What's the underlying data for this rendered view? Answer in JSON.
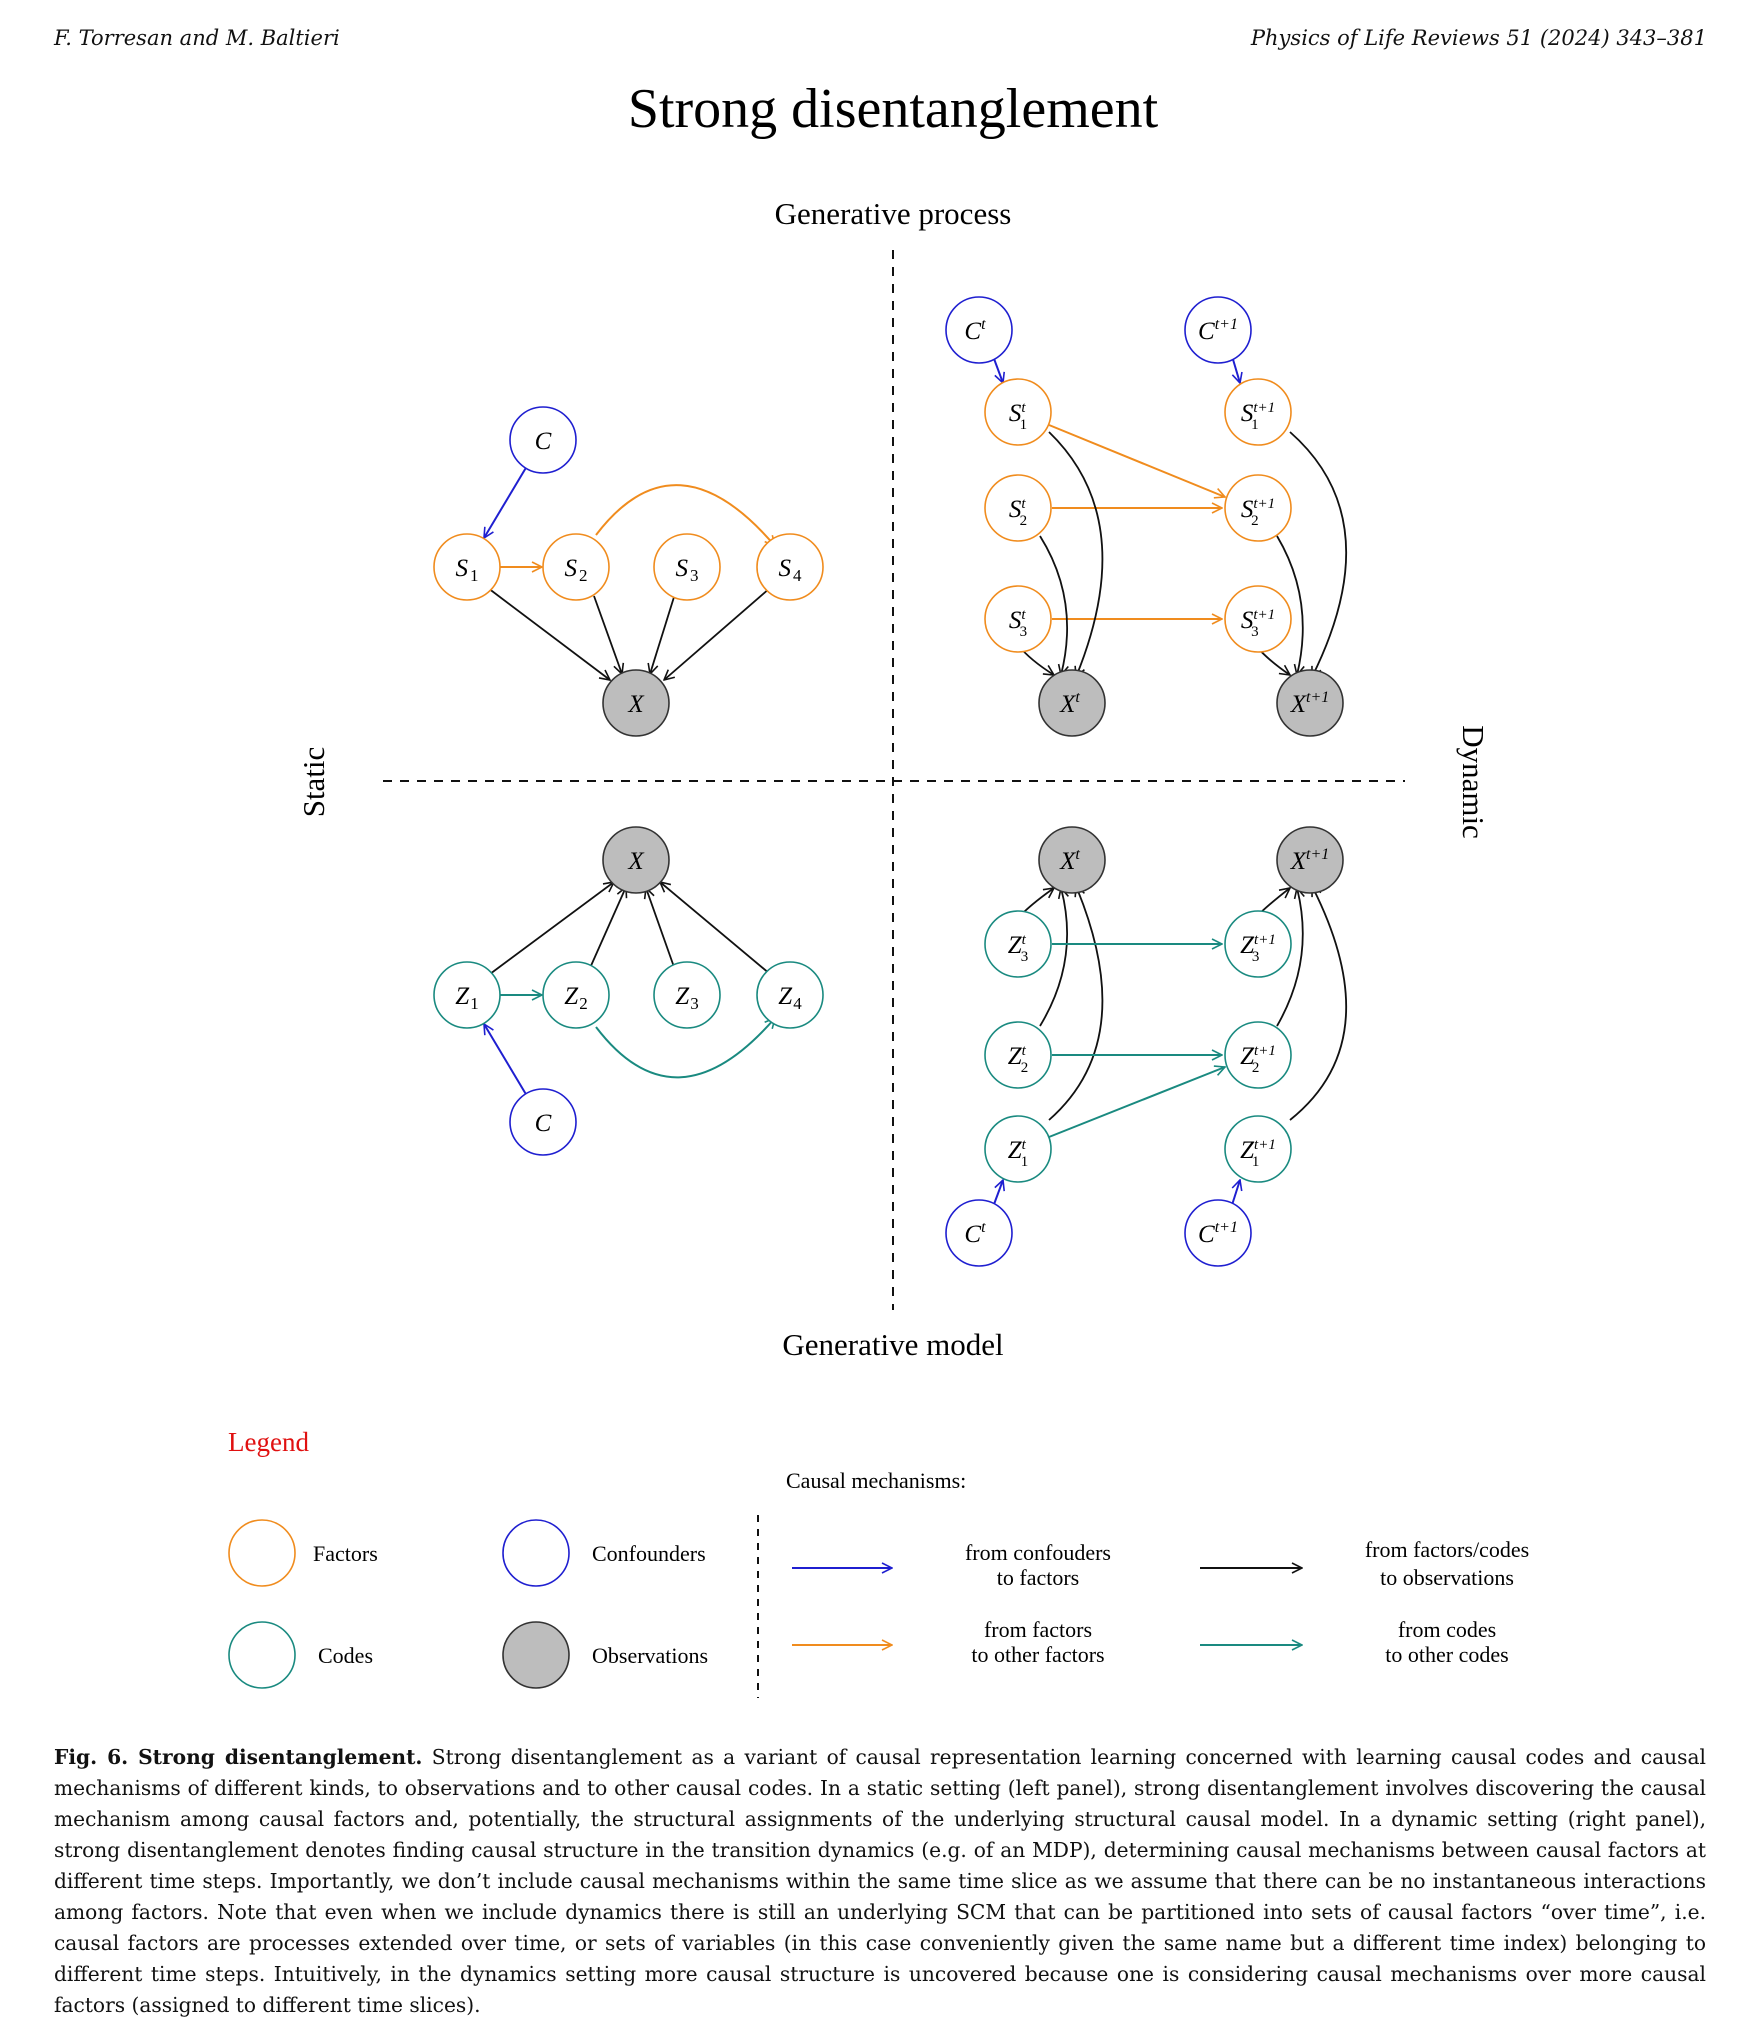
{
  "header": {
    "authors": "F. Torresan and M. Baltieri",
    "journal": "Physics of Life Reviews 51 (2024) 343–381"
  },
  "figure": {
    "title": "Strong disentanglement",
    "top_label": "Generative process",
    "bottom_label": "Generative model",
    "left_label": "Static",
    "right_label": "Dynamic",
    "colors": {
      "factor": "#f08c1e",
      "code": "#1a8a80",
      "confounder": "#1f1fd0",
      "observation_fill": "#bdbdbd",
      "causal_black": "#111111",
      "legend_title": "#e01010"
    },
    "nodes": {
      "static_process": [
        "C",
        "S1",
        "S2",
        "S3",
        "S4",
        "X"
      ],
      "static_model": [
        "X",
        "Z1",
        "Z2",
        "Z3",
        "Z4",
        "C"
      ],
      "dynamic_process": [
        "Ct",
        "Ct+1",
        "S1t",
        "S2t",
        "S3t",
        "S1t+1",
        "S2t+1",
        "S3t+1",
        "Xt",
        "Xt+1"
      ],
      "dynamic_model": [
        "Xt",
        "Xt+1",
        "Z3t",
        "Z2t",
        "Z1t",
        "Z3t+1",
        "Z2t+1",
        "Z1t+1",
        "Ct",
        "Ct+1"
      ]
    },
    "legend": {
      "title": "Legend",
      "factors": "Factors",
      "codes": "Codes",
      "confounders": "Confounders",
      "observations": "Observations",
      "mechanisms_title": "Causal mechanisms:",
      "conf_to_factors": [
        "from confouders",
        "to factors"
      ],
      "factors_to_obs": [
        "from factors/codes",
        "to observations"
      ],
      "factors_to_factors": [
        "from factors",
        "to other factors"
      ],
      "codes_to_codes": [
        "from codes",
        "to other codes"
      ]
    }
  },
  "caption": {
    "label": "Fig. 6. Strong disentanglement.",
    "text": "Strong disentanglement as a variant of causal representation learning concerned with learning causal codes and causal mechanisms of different kinds, to observations and to other causal codes. In a static setting (left panel), strong disentanglement involves discovering the causal mechanism among causal factors and, potentially, the structural assignments of the underlying structural causal model. In a dynamic setting (right panel), strong disentanglement denotes finding causal structure in the transition dynamics (e.g. of an MDP), determining causal mechanisms between causal factors at different time steps. Importantly, we don’t include causal mechanisms within the same time slice as we assume that there can be no instantaneous interactions among factors. Note that even when we include dynamics there is still an underlying SCM that can be partitioned into sets of causal factors “over time”, i.e. causal factors are processes extended over time, or sets of variables (in this case conveniently given the same name but a different time index) belonging to different time steps. Intuitively, in the dynamics setting more causal structure is uncovered because one is considering causal mechanisms over more causal factors (assigned to different time slices)."
  }
}
